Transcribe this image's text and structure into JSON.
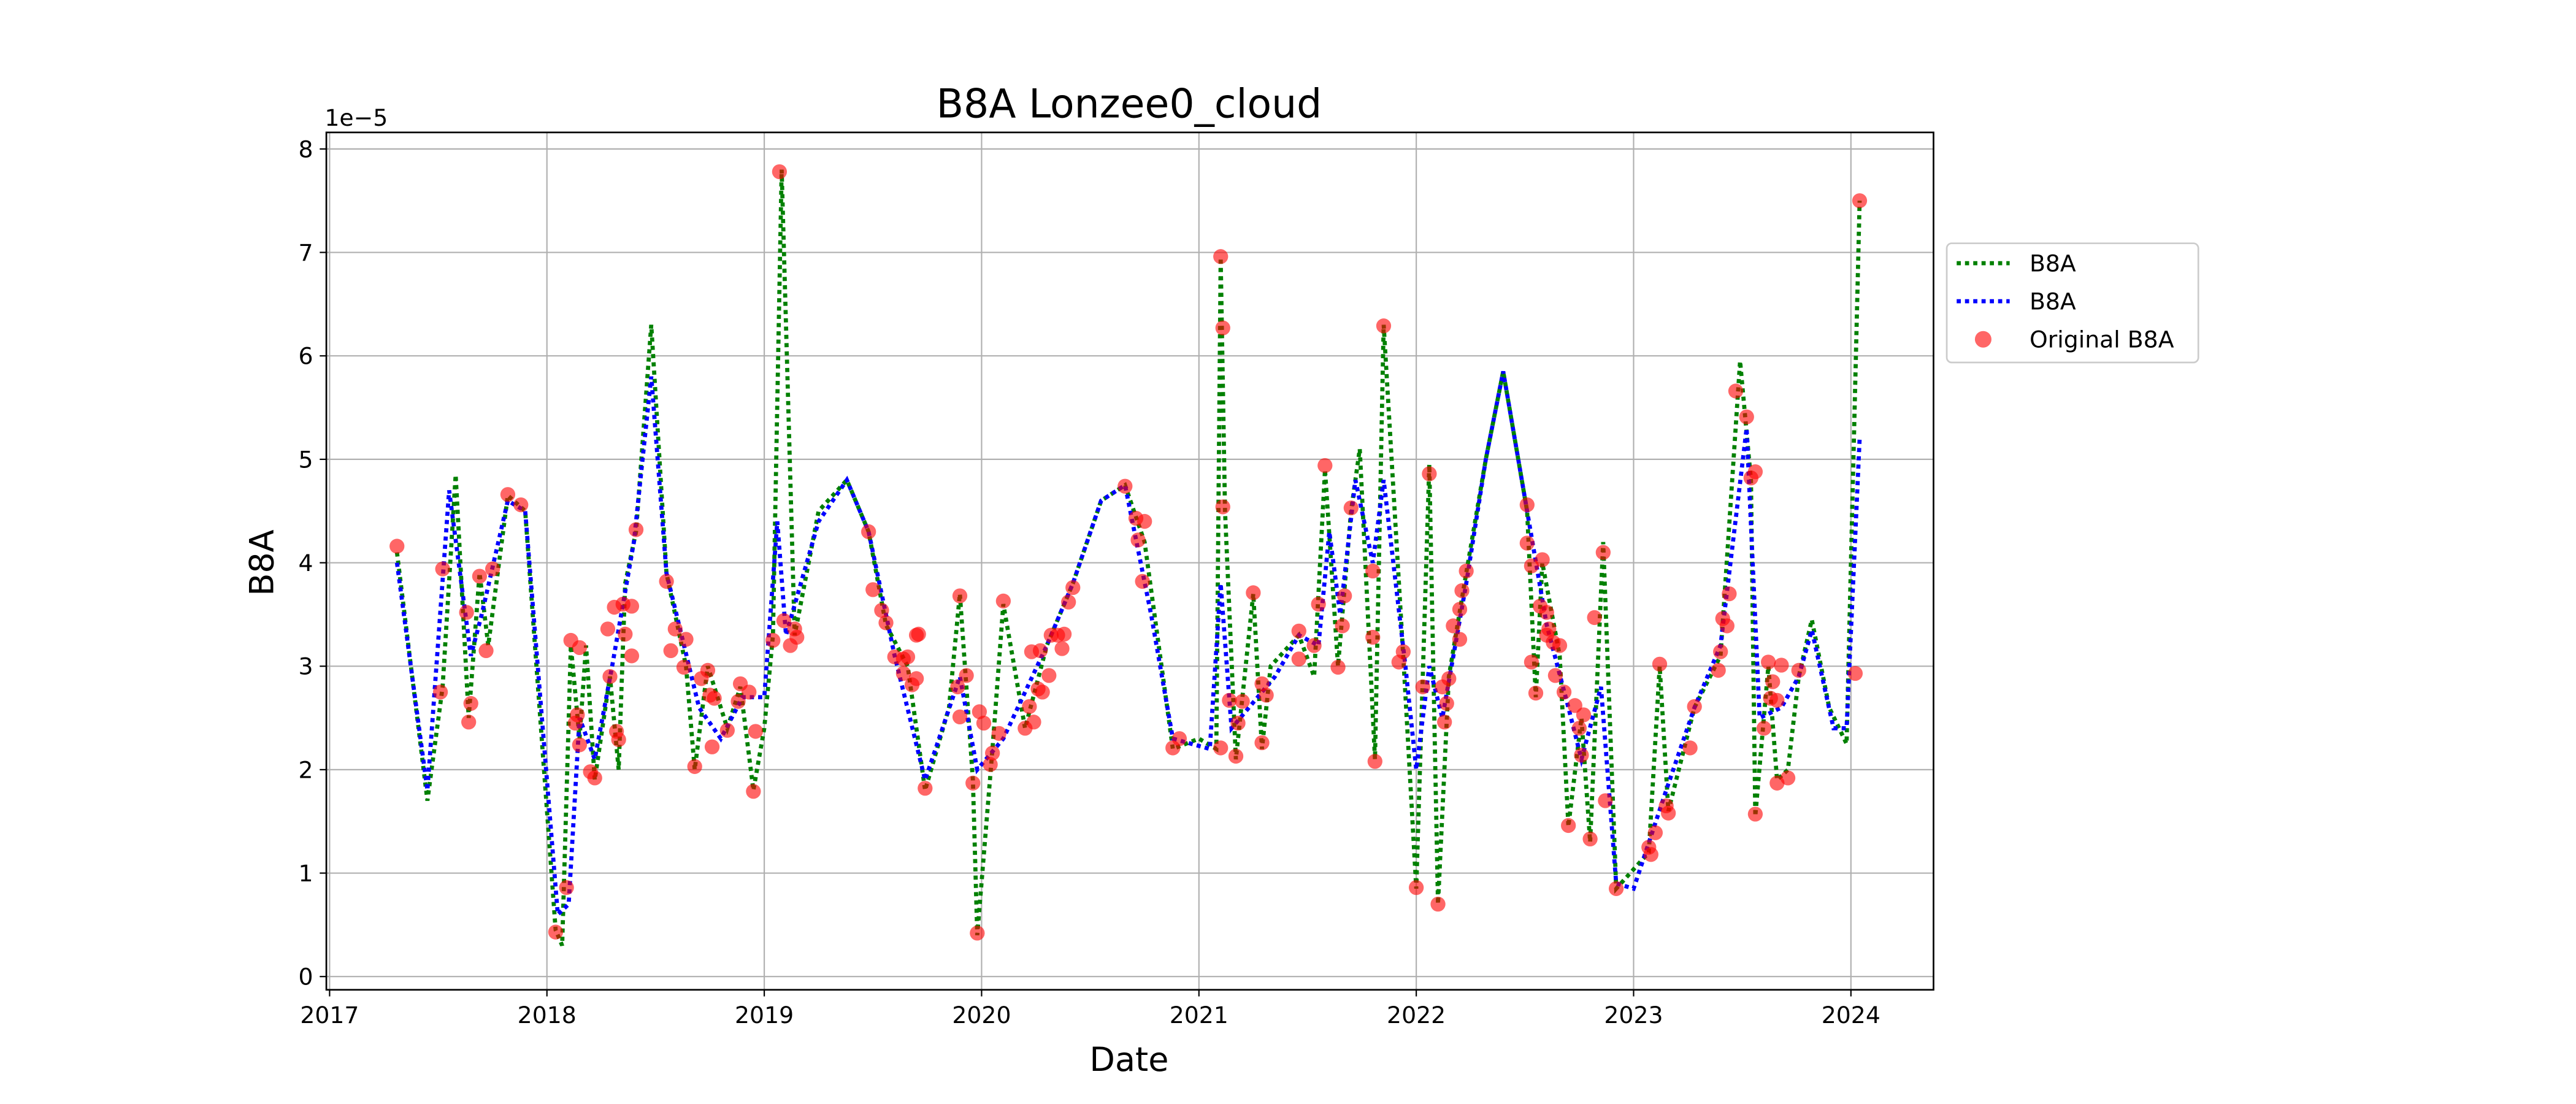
{
  "chart_data": {
    "type": "line",
    "title": "B8A Lonzee0_cloud",
    "x_label": "Date",
    "y_label": "B8A",
    "y_offset_label": "1e−5",
    "xlim": [
      2016.985,
      2024.38
    ],
    "xticks": [
      2017,
      2018,
      2019,
      2020,
      2021,
      2022,
      2023,
      2024
    ],
    "ylim": [
      -0.128,
      8.16
    ],
    "yticks": [
      0,
      1,
      2,
      3,
      4,
      5,
      6,
      7,
      8
    ],
    "grid": true,
    "legend": "outside right",
    "series": [
      {
        "name": "B8A",
        "type": "line",
        "style": "dotted",
        "color": "#008000",
        "x": [
          2017.31,
          2017.45,
          2017.52,
          2017.58,
          2017.64,
          2017.69,
          2017.73,
          2017.82,
          2017.9,
          2018.04,
          2018.07,
          2018.11,
          2018.15,
          2018.18,
          2018.22,
          2018.29,
          2018.33,
          2018.36,
          2018.41,
          2018.48,
          2018.55,
          2018.64,
          2018.68,
          2018.74,
          2018.83,
          2018.89,
          2018.95,
          2019.0,
          2019.04,
          2019.08,
          2019.14,
          2019.25,
          2019.38,
          2019.48,
          2019.56,
          2019.66,
          2019.74,
          2019.85,
          2019.9,
          2019.96,
          2019.98,
          2020.05,
          2020.1,
          2020.2,
          2020.3,
          2020.42,
          2020.55,
          2020.66,
          2020.75,
          2020.88,
          2021.0,
          2021.08,
          2021.1,
          2021.12,
          2021.17,
          2021.25,
          2021.29,
          2021.33,
          2021.46,
          2021.53,
          2021.58,
          2021.64,
          2021.7,
          2021.74,
          2021.81,
          2021.85,
          2021.94,
          2022.0,
          2022.06,
          2022.1,
          2022.15,
          2022.23,
          2022.32,
          2022.4,
          2022.51,
          2022.55,
          2022.58,
          2022.66,
          2022.7,
          2022.76,
          2022.8,
          2022.86,
          2022.92,
          2023.07,
          2023.12,
          2023.16,
          2023.28,
          2023.4,
          2023.49,
          2023.54,
          2023.56,
          2023.62,
          2023.66,
          2023.71,
          2023.76,
          2023.82,
          2023.9,
          2023.98,
          2024.04
        ],
        "values": [
          4.1,
          1.7,
          2.8,
          4.85,
          2.5,
          3.9,
          3.2,
          4.65,
          4.5,
          0.45,
          0.3,
          3.2,
          2.3,
          3.2,
          1.9,
          2.9,
          2.0,
          3.8,
          4.3,
          6.3,
          3.9,
          3.0,
          2.0,
          3.0,
          2.4,
          2.8,
          1.8,
          2.4,
          3.3,
          7.8,
          3.3,
          4.5,
          4.8,
          4.3,
          3.4,
          3.0,
          1.8,
          2.6,
          3.7,
          1.9,
          0.4,
          2.2,
          3.6,
          2.4,
          3.2,
          3.8,
          4.6,
          4.75,
          4.2,
          2.2,
          2.3,
          2.2,
          6.95,
          4.5,
          2.1,
          3.7,
          2.2,
          3.0,
          3.3,
          2.9,
          4.9,
          3.0,
          4.5,
          5.1,
          2.1,
          6.3,
          3.1,
          0.85,
          4.95,
          0.7,
          2.9,
          3.9,
          5.0,
          5.85,
          4.5,
          2.7,
          4.0,
          3.1,
          1.45,
          2.5,
          1.3,
          4.2,
          0.85,
          1.2,
          3.0,
          1.6,
          2.6,
          3.1,
          5.95,
          4.8,
          1.55,
          3.0,
          1.9,
          2.0,
          2.9,
          3.45,
          2.6,
          2.25,
          7.5
        ]
      },
      {
        "name": "B8A",
        "type": "line",
        "style": "dotted",
        "color": "#0000ff",
        "x": [
          2017.31,
          2017.45,
          2017.55,
          2017.65,
          2017.7,
          2017.82,
          2017.9,
          2018.05,
          2018.1,
          2018.15,
          2018.22,
          2018.3,
          2018.4,
          2018.48,
          2018.55,
          2018.7,
          2018.8,
          2018.9,
          2019.0,
          2019.06,
          2019.1,
          2019.25,
          2019.38,
          2019.48,
          2019.6,
          2019.74,
          2019.9,
          2019.98,
          2020.1,
          2020.3,
          2020.42,
          2020.55,
          2020.66,
          2020.78,
          2020.88,
          2021.05,
          2021.1,
          2021.15,
          2021.35,
          2021.46,
          2021.55,
          2021.6,
          2021.65,
          2021.72,
          2021.8,
          2021.85,
          2021.95,
          2022.0,
          2022.06,
          2022.12,
          2022.23,
          2022.32,
          2022.4,
          2022.51,
          2022.6,
          2022.7,
          2022.76,
          2022.85,
          2022.92,
          2023.0,
          2023.15,
          2023.28,
          2023.4,
          2023.52,
          2023.58,
          2023.68,
          2023.76,
          2023.82,
          2023.92,
          2023.98,
          2024.04
        ],
        "values": [
          4.0,
          1.8,
          4.7,
          3.1,
          3.5,
          4.6,
          4.5,
          0.6,
          0.7,
          2.5,
          2.1,
          3.0,
          4.2,
          5.8,
          3.9,
          2.6,
          2.3,
          2.7,
          2.7,
          4.4,
          3.3,
          4.4,
          4.8,
          4.3,
          3.1,
          1.9,
          2.9,
          2.0,
          2.3,
          3.2,
          3.8,
          4.6,
          4.75,
          3.5,
          2.3,
          2.2,
          3.8,
          2.4,
          2.9,
          3.3,
          3.2,
          4.3,
          3.5,
          4.8,
          4.0,
          4.8,
          3.0,
          2.0,
          3.0,
          2.5,
          3.8,
          5.0,
          5.85,
          4.5,
          3.4,
          2.6,
          2.1,
          2.8,
          0.9,
          0.85,
          1.8,
          2.6,
          3.2,
          5.3,
          2.5,
          2.6,
          2.9,
          3.35,
          2.4,
          2.4,
          5.2
        ]
      },
      {
        "name": "Original B8A",
        "type": "scatter",
        "color": "#ff0000",
        "x": [
          2017.31,
          2017.51,
          2017.52,
          2017.63,
          2017.64,
          2017.65,
          2017.69,
          2017.72,
          2017.75,
          2017.82,
          2017.88,
          2018.04,
          2018.09,
          2018.11,
          2018.13,
          2018.14,
          2018.15,
          2018.15,
          2018.2,
          2018.22,
          2018.28,
          2018.29,
          2018.31,
          2018.32,
          2018.33,
          2018.35,
          2018.36,
          2018.39,
          2018.39,
          2018.41,
          2018.55,
          2018.57,
          2018.59,
          2018.64,
          2018.63,
          2018.68,
          2018.71,
          2018.74,
          2018.75,
          2018.76,
          2018.77,
          2018.83,
          2018.88,
          2018.89,
          2018.93,
          2018.95,
          2018.96,
          2019.04,
          2019.07,
          2019.09,
          2019.12,
          2019.14,
          2019.15,
          2019.48,
          2019.5,
          2019.54,
          2019.56,
          2019.6,
          2019.64,
          2019.64,
          2019.66,
          2019.68,
          2019.7,
          2019.71,
          2019.7,
          2019.74,
          2019.9,
          2019.89,
          2019.9,
          2019.93,
          2019.96,
          2019.98,
          2019.99,
          2020.01,
          2020.04,
          2020.05,
          2020.08,
          2020.1,
          2020.2,
          2020.22,
          2020.23,
          2020.24,
          2020.26,
          2020.27,
          2020.28,
          2020.31,
          2020.32,
          2020.35,
          2020.37,
          2020.38,
          2020.4,
          2020.42,
          2020.66,
          2020.71,
          2020.72,
          2020.75,
          2020.74,
          2020.88,
          2020.91,
          2021.1,
          2021.11,
          2021.11,
          2021.1,
          2021.14,
          2021.17,
          2021.18,
          2021.2,
          2021.25,
          2021.29,
          2021.29,
          2021.31,
          2021.46,
          2021.46,
          2021.55,
          2021.53,
          2021.58,
          2021.64,
          2021.66,
          2021.67,
          2021.7,
          2021.8,
          2021.8,
          2021.81,
          2021.85,
          2021.92,
          2021.94,
          2022.0,
          2022.03,
          2022.06,
          2022.1,
          2022.12,
          2022.13,
          2022.14,
          2022.15,
          2022.17,
          2022.2,
          2022.2,
          2022.21,
          2022.23,
          2022.51,
          2022.51,
          2022.53,
          2022.53,
          2022.55,
          2022.57,
          2022.58,
          2022.6,
          2022.61,
          2022.6,
          2022.63,
          2022.64,
          2022.66,
          2022.68,
          2022.7,
          2022.73,
          2022.75,
          2022.76,
          2022.77,
          2022.8,
          2022.82,
          2022.86,
          2022.87,
          2022.92,
          2023.07,
          2023.08,
          2023.1,
          2023.12,
          2023.15,
          2023.16,
          2023.26,
          2023.28,
          2023.39,
          2023.4,
          2023.41,
          2023.43,
          2023.44,
          2023.47,
          2023.52,
          2023.54,
          2023.56,
          2023.56,
          2023.6,
          2023.62,
          2023.63,
          2023.64,
          2023.66,
          2023.66,
          2023.68,
          2023.71,
          2023.76,
          2024.02,
          2024.04
        ],
        "values": [
          4.16,
          2.75,
          3.94,
          3.52,
          2.46,
          2.64,
          3.87,
          3.15,
          3.94,
          4.66,
          4.56,
          0.43,
          0.86,
          3.25,
          2.45,
          2.53,
          2.24,
          3.18,
          1.98,
          1.92,
          3.36,
          2.9,
          3.57,
          2.37,
          2.29,
          3.6,
          3.31,
          3.1,
          3.58,
          4.32,
          3.82,
          3.15,
          3.36,
          3.26,
          2.99,
          2.03,
          2.88,
          2.96,
          2.72,
          2.22,
          2.69,
          2.38,
          2.66,
          2.83,
          2.75,
          1.79,
          2.37,
          3.25,
          7.78,
          3.44,
          3.2,
          3.36,
          3.28,
          4.3,
          3.74,
          3.54,
          3.42,
          3.09,
          3.07,
          2.93,
          3.09,
          2.82,
          3.3,
          3.31,
          2.88,
          1.82,
          3.68,
          2.8,
          2.51,
          2.91,
          1.87,
          0.42,
          2.56,
          2.45,
          2.05,
          2.16,
          2.35,
          3.63,
          2.4,
          2.61,
          3.14,
          2.46,
          2.78,
          3.15,
          2.75,
          2.91,
          3.3,
          3.3,
          3.17,
          3.31,
          3.62,
          3.76,
          4.74,
          4.43,
          4.22,
          4.4,
          3.82,
          2.21,
          2.3,
          6.96,
          6.27,
          4.54,
          2.21,
          2.67,
          2.13,
          2.45,
          2.66,
          3.71,
          2.26,
          2.83,
          2.72,
          3.34,
          3.07,
          3.6,
          3.2,
          4.94,
          2.99,
          3.39,
          3.68,
          4.53,
          3.92,
          3.28,
          2.08,
          6.29,
          3.04,
          3.14,
          0.86,
          2.8,
          4.86,
          0.7,
          2.8,
          2.46,
          2.64,
          2.88,
          3.39,
          3.26,
          3.55,
          3.73,
          3.92,
          4.56,
          4.19,
          3.97,
          3.04,
          2.74,
          3.58,
          4.03,
          3.52,
          3.36,
          3.3,
          3.23,
          2.91,
          3.2,
          2.75,
          1.46,
          2.62,
          2.4,
          2.14,
          2.53,
          1.33,
          3.47,
          4.1,
          1.7,
          0.85,
          1.25,
          1.18,
          1.39,
          3.02,
          1.65,
          1.58,
          2.21,
          2.61,
          2.96,
          3.14,
          3.46,
          3.39,
          3.7,
          5.66,
          5.41,
          4.82,
          4.88,
          1.57,
          2.4,
          3.04,
          2.69,
          2.85,
          2.67,
          1.87,
          3.01,
          1.92,
          2.96,
          2.93,
          7.5
        ]
      }
    ]
  }
}
